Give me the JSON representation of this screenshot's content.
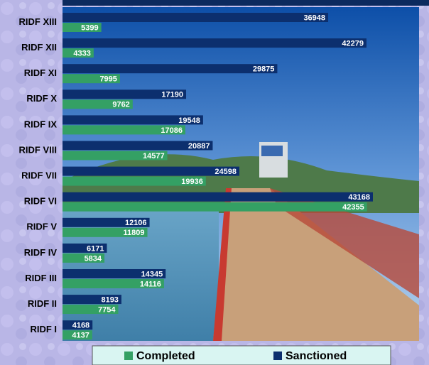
{
  "chart_data": {
    "type": "bar",
    "orientation": "horizontal",
    "categories": [
      "RIDF XIII",
      "RIDF XII",
      "RIDF XI",
      "RIDF X",
      "RIDF IX",
      "RIDF VIII",
      "RIDF VII",
      "RIDF VI",
      "RIDF V",
      "RIDF IV",
      "RIDF III",
      "RIDF II",
      "RIDF I"
    ],
    "series": [
      {
        "name": "Completed",
        "color": "#34a064",
        "values": [
          5399,
          4333,
          7995,
          9762,
          17086,
          14577,
          19936,
          42355,
          11809,
          5834,
          14116,
          7754,
          4137
        ]
      },
      {
        "name": "Sanctioned",
        "color": "#0c2f6e",
        "values": [
          36948,
          42279,
          29875,
          17190,
          19548,
          20887,
          24598,
          43168,
          12106,
          6171,
          14345,
          8193,
          4168
        ]
      }
    ],
    "legend": "bottom"
  }
}
